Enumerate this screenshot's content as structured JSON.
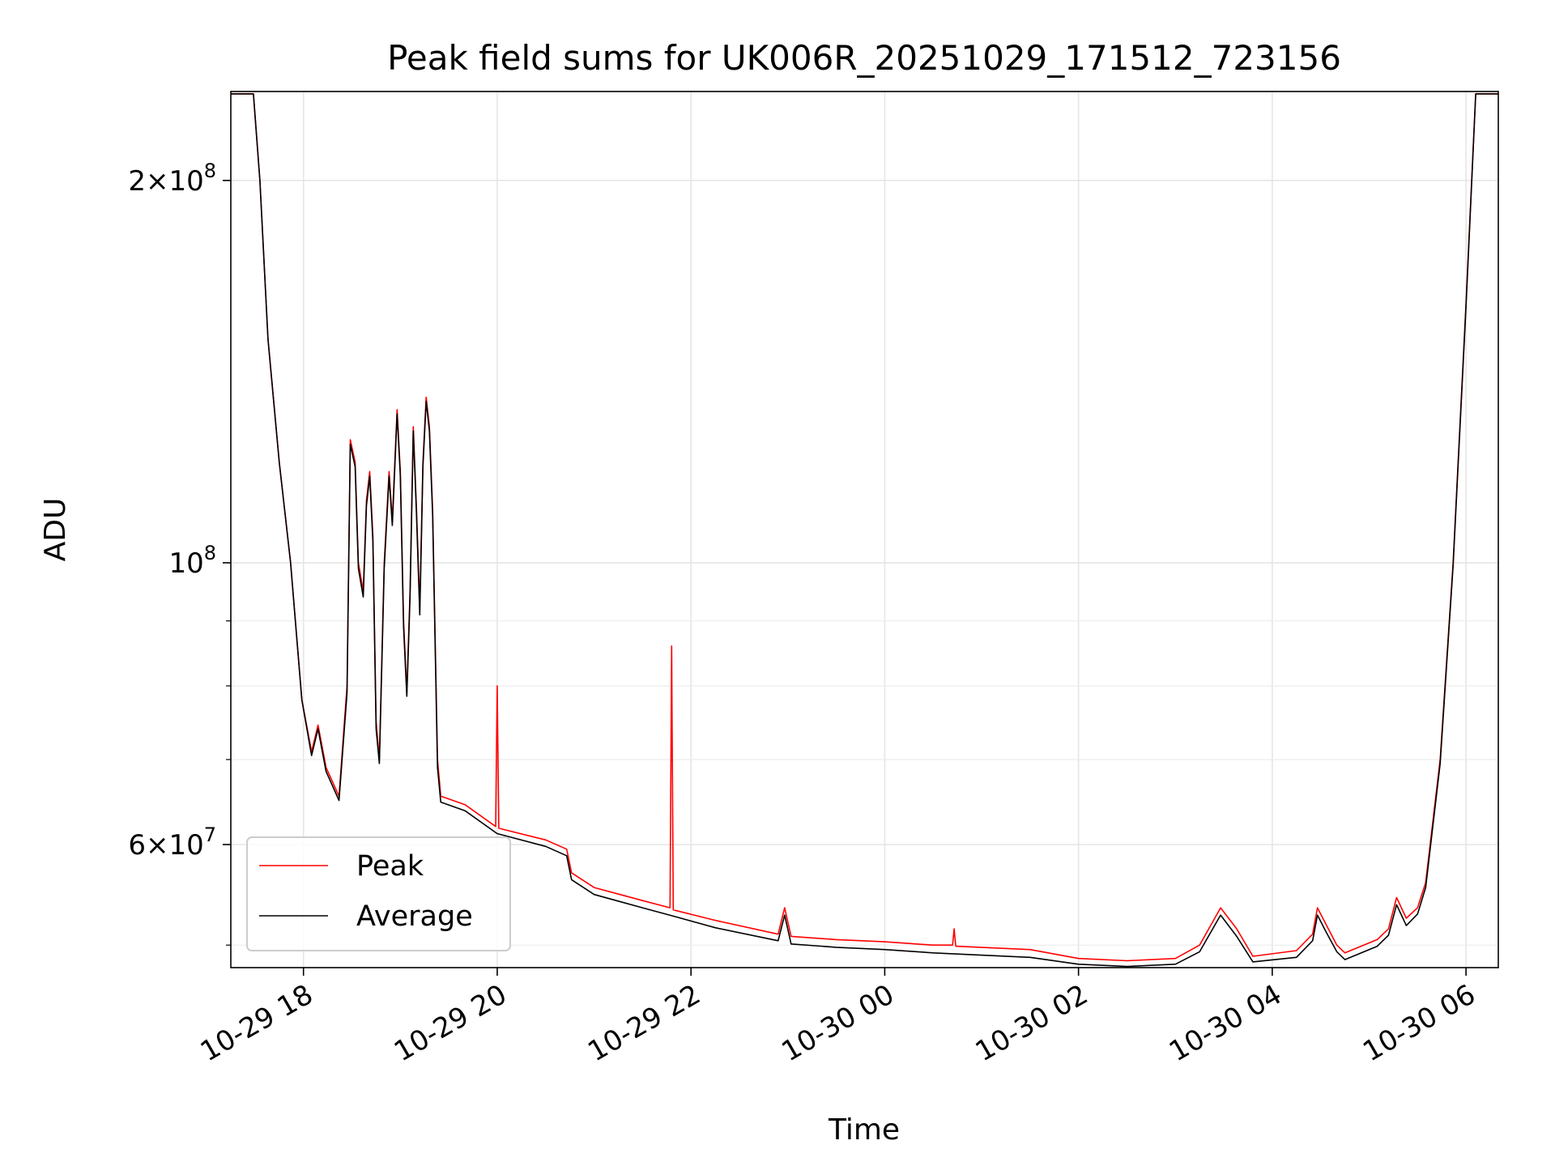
{
  "chart_data": {
    "type": "line",
    "title": "Peak field sums for UK006R_20251029_171512_723156",
    "xlabel": "Time",
    "ylabel": "ADU",
    "yscale": "log",
    "grid": true,
    "legend_position": "lower-left",
    "xlim": [
      "2025-10-29 17:15",
      "2025-10-30 06:20"
    ],
    "ylim": [
      48000000,
      235000000
    ],
    "x_ticks": [
      {
        "time": "2025-10-29 18:00",
        "label": "10-29 18"
      },
      {
        "time": "2025-10-29 20:00",
        "label": "10-29 20"
      },
      {
        "time": "2025-10-29 22:00",
        "label": "10-29 22"
      },
      {
        "time": "2025-10-30 00:00",
        "label": "10-30 00"
      },
      {
        "time": "2025-10-30 02:00",
        "label": "10-30 02"
      },
      {
        "time": "2025-10-30 04:00",
        "label": "10-30 04"
      },
      {
        "time": "2025-10-30 06:00",
        "label": "10-30 06"
      }
    ],
    "y_ticks": [
      {
        "value": 60000000,
        "base": "6",
        "exp": "7"
      },
      {
        "value": 100000000,
        "base": "",
        "exp": "8"
      },
      {
        "value": 200000000,
        "base": "2",
        "exp": "8"
      }
    ],
    "y_minor_ticks": [
      50000000,
      70000000,
      80000000,
      90000000
    ],
    "series": [
      {
        "name": "Peak",
        "color": "#ff0000",
        "points": [
          [
            "2025-10-29 17:15",
            234000000
          ],
          [
            "2025-10-29 17:29",
            234000000
          ],
          [
            "2025-10-29 17:33",
            200000000
          ],
          [
            "2025-10-29 17:38",
            150000000
          ],
          [
            "2025-10-29 17:45",
            120000000
          ],
          [
            "2025-10-29 17:52",
            100000000
          ],
          [
            "2025-10-29 17:59",
            78000000
          ],
          [
            "2025-10-29 18:05",
            71000000
          ],
          [
            "2025-10-29 18:09",
            74500000
          ],
          [
            "2025-10-29 18:14",
            69000000
          ],
          [
            "2025-10-29 18:22",
            65500000
          ],
          [
            "2025-10-29 18:27",
            80000000
          ],
          [
            "2025-10-29 18:29",
            125000000
          ],
          [
            "2025-10-29 18:32",
            120000000
          ],
          [
            "2025-10-29 18:34",
            100000000
          ],
          [
            "2025-10-29 18:37",
            95000000
          ],
          [
            "2025-10-29 18:39",
            112000000
          ],
          [
            "2025-10-29 18:41",
            118000000
          ],
          [
            "2025-10-29 18:43",
            105000000
          ],
          [
            "2025-10-29 18:45",
            75000000
          ],
          [
            "2025-10-29 18:47",
            70000000
          ],
          [
            "2025-10-29 18:50",
            100000000
          ],
          [
            "2025-10-29 18:53",
            118000000
          ],
          [
            "2025-10-29 18:55",
            108000000
          ],
          [
            "2025-10-29 18:58",
            132000000
          ],
          [
            "2025-10-29 19:00",
            118000000
          ],
          [
            "2025-10-29 19:02",
            90000000
          ],
          [
            "2025-10-29 19:04",
            79000000
          ],
          [
            "2025-10-29 19:06",
            95000000
          ],
          [
            "2025-10-29 19:08",
            128000000
          ],
          [
            "2025-10-29 19:10",
            110000000
          ],
          [
            "2025-10-29 19:12",
            92000000
          ],
          [
            "2025-10-29 19:14",
            120000000
          ],
          [
            "2025-10-29 19:16",
            135000000
          ],
          [
            "2025-10-29 19:18",
            128000000
          ],
          [
            "2025-10-29 19:20",
            110000000
          ],
          [
            "2025-10-29 19:23",
            70000000
          ],
          [
            "2025-10-29 19:25",
            65500000
          ],
          [
            "2025-10-29 19:40",
            64500000
          ],
          [
            "2025-10-29 19:59",
            62000000
          ],
          [
            "2025-10-29 20:00",
            80000000
          ],
          [
            "2025-10-29 20:01",
            61800000
          ],
          [
            "2025-10-29 20:30",
            60500000
          ],
          [
            "2025-10-29 20:43",
            59500000
          ],
          [
            "2025-10-29 20:46",
            57000000
          ],
          [
            "2025-10-29 21:00",
            55500000
          ],
          [
            "2025-10-29 21:30",
            54200000
          ],
          [
            "2025-10-29 21:47",
            53500000
          ],
          [
            "2025-10-29 21:48",
            86000000
          ],
          [
            "2025-10-29 21:49",
            53300000
          ],
          [
            "2025-10-29 22:15",
            52300000
          ],
          [
            "2025-10-29 22:54",
            51000000
          ],
          [
            "2025-10-29 22:58",
            53500000
          ],
          [
            "2025-10-29 23:02",
            50800000
          ],
          [
            "2025-10-29 23:30",
            50500000
          ],
          [
            "2025-10-30 00:00",
            50300000
          ],
          [
            "2025-10-30 00:30",
            50000000
          ],
          [
            "2025-10-30 00:42",
            50000000
          ],
          [
            "2025-10-30 00:43",
            51500000
          ],
          [
            "2025-10-30 00:44",
            49900000
          ],
          [
            "2025-10-30 01:30",
            49600000
          ],
          [
            "2025-10-30 02:00",
            48800000
          ],
          [
            "2025-10-30 02:30",
            48600000
          ],
          [
            "2025-10-30 03:00",
            48800000
          ],
          [
            "2025-10-30 03:15",
            50000000
          ],
          [
            "2025-10-30 03:28",
            53500000
          ],
          [
            "2025-10-30 03:38",
            51500000
          ],
          [
            "2025-10-30 03:48",
            49000000
          ],
          [
            "2025-10-30 04:15",
            49500000
          ],
          [
            "2025-10-30 04:25",
            51000000
          ],
          [
            "2025-10-30 04:28",
            53500000
          ],
          [
            "2025-10-30 04:33",
            52000000
          ],
          [
            "2025-10-30 04:40",
            50000000
          ],
          [
            "2025-10-30 04:45",
            49300000
          ],
          [
            "2025-10-30 05:05",
            50500000
          ],
          [
            "2025-10-30 05:12",
            51500000
          ],
          [
            "2025-10-30 05:17",
            54500000
          ],
          [
            "2025-10-30 05:23",
            52500000
          ],
          [
            "2025-10-30 05:30",
            53500000
          ],
          [
            "2025-10-30 05:35",
            56000000
          ],
          [
            "2025-10-30 05:44",
            70000000
          ],
          [
            "2025-10-30 05:52",
            100000000
          ],
          [
            "2025-10-30 06:00",
            160000000
          ],
          [
            "2025-10-30 06:06",
            234000000
          ],
          [
            "2025-10-30 06:20",
            234000000
          ]
        ]
      },
      {
        "name": "Average",
        "color": "#000000",
        "points": [
          [
            "2025-10-29 17:15",
            234000000
          ],
          [
            "2025-10-29 17:29",
            234000000
          ],
          [
            "2025-10-29 17:33",
            200000000
          ],
          [
            "2025-10-29 17:38",
            150000000
          ],
          [
            "2025-10-29 17:45",
            120000000
          ],
          [
            "2025-10-29 17:52",
            100000000
          ],
          [
            "2025-10-29 17:59",
            78000000
          ],
          [
            "2025-10-29 18:05",
            70500000
          ],
          [
            "2025-10-29 18:09",
            74000000
          ],
          [
            "2025-10-29 18:14",
            68500000
          ],
          [
            "2025-10-29 18:22",
            65000000
          ],
          [
            "2025-10-29 18:27",
            79000000
          ],
          [
            "2025-10-29 18:29",
            124000000
          ],
          [
            "2025-10-29 18:32",
            119000000
          ],
          [
            "2025-10-29 18:34",
            99000000
          ],
          [
            "2025-10-29 18:37",
            94000000
          ],
          [
            "2025-10-29 18:39",
            111000000
          ],
          [
            "2025-10-29 18:41",
            117000000
          ],
          [
            "2025-10-29 18:43",
            104000000
          ],
          [
            "2025-10-29 18:45",
            74000000
          ],
          [
            "2025-10-29 18:47",
            69500000
          ],
          [
            "2025-10-29 18:50",
            99000000
          ],
          [
            "2025-10-29 18:53",
            117000000
          ],
          [
            "2025-10-29 18:55",
            107000000
          ],
          [
            "2025-10-29 18:58",
            131000000
          ],
          [
            "2025-10-29 19:00",
            117000000
          ],
          [
            "2025-10-29 19:02",
            89000000
          ],
          [
            "2025-10-29 19:04",
            78500000
          ],
          [
            "2025-10-29 19:06",
            94000000
          ],
          [
            "2025-10-29 19:08",
            127000000
          ],
          [
            "2025-10-29 19:10",
            109000000
          ],
          [
            "2025-10-29 19:12",
            91000000
          ],
          [
            "2025-10-29 19:14",
            119000000
          ],
          [
            "2025-10-29 19:16",
            134000000
          ],
          [
            "2025-10-29 19:18",
            127000000
          ],
          [
            "2025-10-29 19:20",
            109000000
          ],
          [
            "2025-10-29 19:23",
            69000000
          ],
          [
            "2025-10-29 19:25",
            64800000
          ],
          [
            "2025-10-29 19:40",
            63800000
          ],
          [
            "2025-10-29 20:00",
            61200000
          ],
          [
            "2025-10-29 20:30",
            59800000
          ],
          [
            "2025-10-29 20:43",
            58800000
          ],
          [
            "2025-10-29 20:46",
            56300000
          ],
          [
            "2025-10-29 21:00",
            54800000
          ],
          [
            "2025-10-29 21:30",
            53500000
          ],
          [
            "2025-10-29 21:49",
            52700000
          ],
          [
            "2025-10-29 22:15",
            51600000
          ],
          [
            "2025-10-29 22:54",
            50400000
          ],
          [
            "2025-10-29 22:58",
            52800000
          ],
          [
            "2025-10-29 23:02",
            50100000
          ],
          [
            "2025-10-29 23:30",
            49800000
          ],
          [
            "2025-10-30 00:00",
            49600000
          ],
          [
            "2025-10-30 00:30",
            49300000
          ],
          [
            "2025-10-30 01:30",
            48900000
          ],
          [
            "2025-10-30 02:00",
            48300000
          ],
          [
            "2025-10-30 02:30",
            48100000
          ],
          [
            "2025-10-30 03:00",
            48300000
          ],
          [
            "2025-10-30 03:15",
            49400000
          ],
          [
            "2025-10-30 03:28",
            52800000
          ],
          [
            "2025-10-30 03:38",
            50800000
          ],
          [
            "2025-10-30 03:48",
            48500000
          ],
          [
            "2025-10-30 04:15",
            48900000
          ],
          [
            "2025-10-30 04:25",
            50400000
          ],
          [
            "2025-10-30 04:28",
            52800000
          ],
          [
            "2025-10-30 04:33",
            51300000
          ],
          [
            "2025-10-30 04:40",
            49400000
          ],
          [
            "2025-10-30 04:45",
            48700000
          ],
          [
            "2025-10-30 05:05",
            49900000
          ],
          [
            "2025-10-30 05:12",
            50900000
          ],
          [
            "2025-10-30 05:17",
            53800000
          ],
          [
            "2025-10-30 05:23",
            51800000
          ],
          [
            "2025-10-30 05:30",
            52900000
          ],
          [
            "2025-10-30 05:35",
            55500000
          ],
          [
            "2025-10-30 05:44",
            69500000
          ],
          [
            "2025-10-30 05:52",
            99500000
          ],
          [
            "2025-10-30 06:00",
            159000000
          ],
          [
            "2025-10-30 06:06",
            234000000
          ],
          [
            "2025-10-30 06:20",
            234000000
          ]
        ]
      }
    ]
  }
}
